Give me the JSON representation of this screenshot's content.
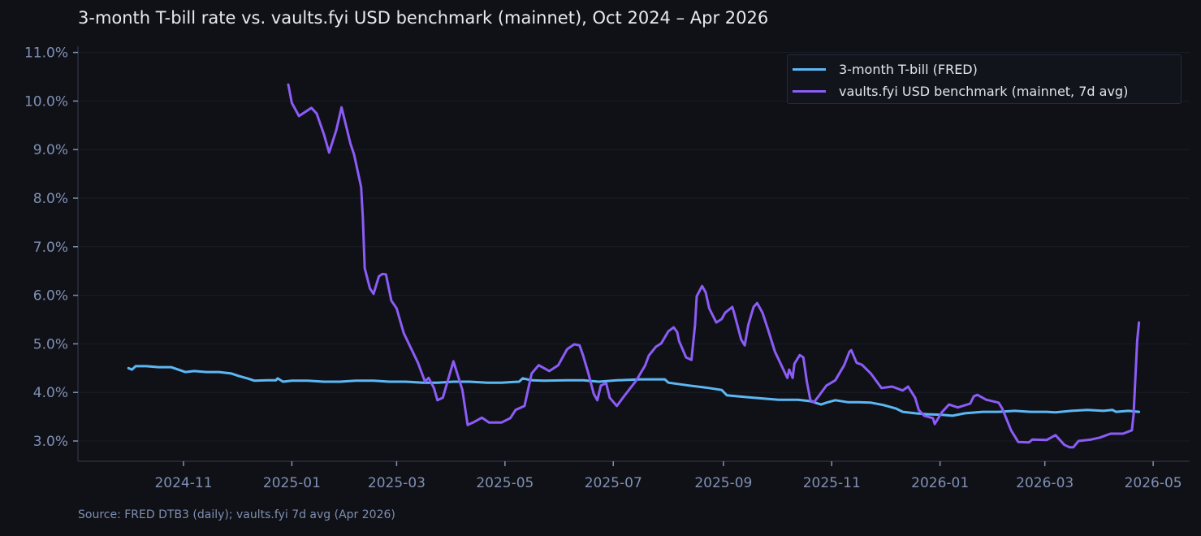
{
  "title": "3-month T-bill rate vs. vaults.fyi USD benchmark (mainnet), Oct 2024 – Apr 2026",
  "source_note": "Source: FRED DTB3 (daily); vaults.fyi 7d avg (Apr 2026)",
  "colors": {
    "background": "#101117",
    "tbill": "#5cb8f5",
    "vaults": "#8b5cf6",
    "grid": "#1a1d26",
    "axis": "#2a2f3e",
    "tick_text": "#8090b4"
  },
  "legend": [
    {
      "label": "3-month T-bill (FRED)",
      "color": "#5cb8f5"
    },
    {
      "label": "vaults.fyi USD benchmark (mainnet, 7d avg)",
      "color": "#8b5cf6"
    }
  ],
  "chart_data": {
    "type": "line",
    "title": "3-month T-bill rate vs. vaults.fyi USD benchmark (mainnet), Oct 2024 – Apr 2026",
    "xlabel": "",
    "ylabel": "",
    "x_ticks": [
      "2024-11",
      "2025-01",
      "2025-03",
      "2025-05",
      "2025-07",
      "2025-09",
      "2025-11",
      "2026-01",
      "2026-03",
      "2026-05"
    ],
    "y_ticks": [
      "3.0%",
      "4.0%",
      "5.0%",
      "6.0%",
      "7.0%",
      "8.0%",
      "9.0%",
      "10.0%",
      "11.0%"
    ],
    "ylim": [
      2.6,
      11.1
    ],
    "grid": true,
    "legend_position": "upper right",
    "series": [
      {
        "name": "3-month T-bill (FRED)",
        "points": [
          [
            "2024-10-01",
            4.5
          ],
          [
            "2024-10-03",
            4.47
          ],
          [
            "2024-10-05",
            4.54
          ],
          [
            "2024-10-11",
            4.54
          ],
          [
            "2024-10-18",
            4.52
          ],
          [
            "2024-10-25",
            4.52
          ],
          [
            "2024-10-29",
            4.47
          ],
          [
            "2024-11-02",
            4.42
          ],
          [
            "2024-11-07",
            4.44
          ],
          [
            "2024-11-14",
            4.42
          ],
          [
            "2024-11-21",
            4.42
          ],
          [
            "2024-11-28",
            4.39
          ],
          [
            "2024-12-02",
            4.34
          ],
          [
            "2024-12-07",
            4.29
          ],
          [
            "2024-12-11",
            4.24
          ],
          [
            "2024-12-18",
            4.25
          ],
          [
            "2024-12-23",
            4.25
          ],
          [
            "2024-12-24",
            4.29
          ],
          [
            "2024-12-27",
            4.22
          ],
          [
            "2025-01-01",
            4.24
          ],
          [
            "2025-01-10",
            4.24
          ],
          [
            "2025-01-19",
            4.22
          ],
          [
            "2025-01-28",
            4.22
          ],
          [
            "2025-02-06",
            4.24
          ],
          [
            "2025-02-16",
            4.24
          ],
          [
            "2025-02-25",
            4.22
          ],
          [
            "2025-03-06",
            4.22
          ],
          [
            "2025-03-16",
            4.2
          ],
          [
            "2025-03-24",
            4.2
          ],
          [
            "2025-04-02",
            4.22
          ],
          [
            "2025-04-11",
            4.22
          ],
          [
            "2025-04-21",
            4.2
          ],
          [
            "2025-04-29",
            4.2
          ],
          [
            "2025-05-09",
            4.22
          ],
          [
            "2025-05-11",
            4.29
          ],
          [
            "2025-05-16",
            4.25
          ],
          [
            "2025-05-23",
            4.24
          ],
          [
            "2025-06-05",
            4.25
          ],
          [
            "2025-06-14",
            4.25
          ],
          [
            "2025-06-23",
            4.22
          ],
          [
            "2025-07-03",
            4.25
          ],
          [
            "2025-07-16",
            4.27
          ],
          [
            "2025-07-30",
            4.27
          ],
          [
            "2025-08-01",
            4.2
          ],
          [
            "2025-08-13",
            4.14
          ],
          [
            "2025-08-22",
            4.1
          ],
          [
            "2025-08-31",
            4.05
          ],
          [
            "2025-09-03",
            3.94
          ],
          [
            "2025-09-09",
            3.92
          ],
          [
            "2025-09-18",
            3.89
          ],
          [
            "2025-10-02",
            3.85
          ],
          [
            "2025-10-13",
            3.85
          ],
          [
            "2025-10-20",
            3.82
          ],
          [
            "2025-10-26",
            3.75
          ],
          [
            "2025-10-29",
            3.79
          ],
          [
            "2025-11-03",
            3.84
          ],
          [
            "2025-11-10",
            3.8
          ],
          [
            "2025-11-16",
            3.8
          ],
          [
            "2025-11-23",
            3.79
          ],
          [
            "2025-11-30",
            3.74
          ],
          [
            "2025-12-07",
            3.67
          ],
          [
            "2025-12-11",
            3.6
          ],
          [
            "2025-12-18",
            3.57
          ],
          [
            "2025-12-25",
            3.55
          ],
          [
            "2026-01-02",
            3.54
          ],
          [
            "2026-01-08",
            3.52
          ],
          [
            "2026-01-15",
            3.57
          ],
          [
            "2026-01-25",
            3.6
          ],
          [
            "2026-02-03",
            3.6
          ],
          [
            "2026-02-12",
            3.62
          ],
          [
            "2026-02-21",
            3.6
          ],
          [
            "2026-03-02",
            3.6
          ],
          [
            "2026-03-07",
            3.59
          ],
          [
            "2026-03-16",
            3.62
          ],
          [
            "2026-03-25",
            3.64
          ],
          [
            "2026-04-03",
            3.62
          ],
          [
            "2026-04-08",
            3.64
          ],
          [
            "2026-04-10",
            3.6
          ],
          [
            "2026-04-17",
            3.62
          ],
          [
            "2026-04-23",
            3.6
          ]
        ]
      },
      {
        "name": "vaults.fyi USD benchmark (mainnet, 7d avg)",
        "points": [
          [
            "2024-12-30",
            10.34
          ],
          [
            "2025-01-01",
            9.96
          ],
          [
            "2025-01-05",
            9.69
          ],
          [
            "2025-01-12",
            9.86
          ],
          [
            "2025-01-15",
            9.74
          ],
          [
            "2025-01-19",
            9.32
          ],
          [
            "2025-01-22",
            8.94
          ],
          [
            "2025-01-26",
            9.4
          ],
          [
            "2025-01-29",
            9.87
          ],
          [
            "2025-02-03",
            9.12
          ],
          [
            "2025-02-05",
            8.9
          ],
          [
            "2025-02-09",
            8.23
          ],
          [
            "2025-02-10",
            7.57
          ],
          [
            "2025-02-11",
            6.56
          ],
          [
            "2025-02-14",
            6.14
          ],
          [
            "2025-02-16",
            6.03
          ],
          [
            "2025-02-19",
            6.39
          ],
          [
            "2025-02-21",
            6.44
          ],
          [
            "2025-02-23",
            6.43
          ],
          [
            "2025-02-26",
            5.89
          ],
          [
            "2025-03-01",
            5.73
          ],
          [
            "2025-03-05",
            5.22
          ],
          [
            "2025-03-13",
            4.61
          ],
          [
            "2025-03-17",
            4.22
          ],
          [
            "2025-03-19",
            4.3
          ],
          [
            "2025-03-22",
            4.09
          ],
          [
            "2025-03-24",
            3.84
          ],
          [
            "2025-03-27",
            3.89
          ],
          [
            "2025-04-02",
            4.64
          ],
          [
            "2025-04-07",
            4.05
          ],
          [
            "2025-04-10",
            3.33
          ],
          [
            "2025-04-13",
            3.38
          ],
          [
            "2025-04-18",
            3.48
          ],
          [
            "2025-04-22",
            3.38
          ],
          [
            "2025-04-29",
            3.38
          ],
          [
            "2025-05-04",
            3.47
          ],
          [
            "2025-05-07",
            3.64
          ],
          [
            "2025-05-12",
            3.72
          ],
          [
            "2025-05-16",
            4.39
          ],
          [
            "2025-05-20",
            4.56
          ],
          [
            "2025-05-26",
            4.44
          ],
          [
            "2025-05-31",
            4.56
          ],
          [
            "2025-06-05",
            4.89
          ],
          [
            "2025-06-09",
            4.99
          ],
          [
            "2025-06-12",
            4.97
          ],
          [
            "2025-06-14",
            4.76
          ],
          [
            "2025-06-17",
            4.39
          ],
          [
            "2025-06-20",
            3.97
          ],
          [
            "2025-06-22",
            3.84
          ],
          [
            "2025-06-24",
            4.14
          ],
          [
            "2025-06-27",
            4.19
          ],
          [
            "2025-06-29",
            3.89
          ],
          [
            "2025-07-03",
            3.72
          ],
          [
            "2025-07-07",
            3.92
          ],
          [
            "2025-07-14",
            4.25
          ],
          [
            "2025-07-19",
            4.56
          ],
          [
            "2025-07-21",
            4.76
          ],
          [
            "2025-07-25",
            4.94
          ],
          [
            "2025-07-28",
            5.01
          ],
          [
            "2025-08-01",
            5.26
          ],
          [
            "2025-08-04",
            5.34
          ],
          [
            "2025-08-06",
            5.24
          ],
          [
            "2025-08-07",
            5.06
          ],
          [
            "2025-08-11",
            4.72
          ],
          [
            "2025-08-14",
            4.67
          ],
          [
            "2025-08-16",
            5.39
          ],
          [
            "2025-08-17",
            5.98
          ],
          [
            "2025-08-20",
            6.19
          ],
          [
            "2025-08-22",
            6.06
          ],
          [
            "2025-08-24",
            5.73
          ],
          [
            "2025-08-28",
            5.44
          ],
          [
            "2025-08-31",
            5.51
          ],
          [
            "2025-09-02",
            5.64
          ],
          [
            "2025-09-06",
            5.76
          ],
          [
            "2025-09-07",
            5.64
          ],
          [
            "2025-09-11",
            5.09
          ],
          [
            "2025-09-13",
            4.97
          ],
          [
            "2025-09-15",
            5.39
          ],
          [
            "2025-09-18",
            5.76
          ],
          [
            "2025-09-20",
            5.84
          ],
          [
            "2025-09-23",
            5.64
          ],
          [
            "2025-09-26",
            5.31
          ],
          [
            "2025-09-30",
            4.84
          ],
          [
            "2025-10-03",
            4.61
          ],
          [
            "2025-10-07",
            4.3
          ],
          [
            "2025-10-08",
            4.47
          ],
          [
            "2025-10-10",
            4.3
          ],
          [
            "2025-10-11",
            4.59
          ],
          [
            "2025-10-14",
            4.77
          ],
          [
            "2025-10-16",
            4.72
          ],
          [
            "2025-10-18",
            4.22
          ],
          [
            "2025-10-20",
            3.84
          ],
          [
            "2025-10-22",
            3.8
          ],
          [
            "2025-10-25",
            3.94
          ],
          [
            "2025-10-29",
            4.14
          ],
          [
            "2025-11-03",
            4.25
          ],
          [
            "2025-11-08",
            4.56
          ],
          [
            "2025-11-11",
            4.84
          ],
          [
            "2025-11-12",
            4.87
          ],
          [
            "2025-11-15",
            4.61
          ],
          [
            "2025-11-18",
            4.57
          ],
          [
            "2025-11-23",
            4.39
          ],
          [
            "2025-11-29",
            4.09
          ],
          [
            "2025-12-05",
            4.12
          ],
          [
            "2025-12-11",
            4.04
          ],
          [
            "2025-12-14",
            4.12
          ],
          [
            "2025-12-18",
            3.89
          ],
          [
            "2025-12-20",
            3.64
          ],
          [
            "2025-12-23",
            3.52
          ],
          [
            "2025-12-28",
            3.47
          ],
          [
            "2025-12-29",
            3.35
          ],
          [
            "2026-01-02",
            3.59
          ],
          [
            "2026-01-06",
            3.75
          ],
          [
            "2026-01-11",
            3.69
          ],
          [
            "2026-01-18",
            3.77
          ],
          [
            "2026-01-20",
            3.92
          ],
          [
            "2026-01-22",
            3.95
          ],
          [
            "2026-01-27",
            3.85
          ],
          [
            "2026-02-03",
            3.79
          ],
          [
            "2026-02-05",
            3.67
          ],
          [
            "2026-02-10",
            3.22
          ],
          [
            "2026-02-14",
            2.98
          ],
          [
            "2026-02-20",
            2.97
          ],
          [
            "2026-02-22",
            3.03
          ],
          [
            "2026-03-02",
            3.02
          ],
          [
            "2026-03-07",
            3.12
          ],
          [
            "2026-03-12",
            2.92
          ],
          [
            "2026-03-15",
            2.87
          ],
          [
            "2026-03-17",
            2.87
          ],
          [
            "2026-03-20",
            3.0
          ],
          [
            "2026-03-27",
            3.03
          ],
          [
            "2026-04-01",
            3.07
          ],
          [
            "2026-04-07",
            3.15
          ],
          [
            "2026-04-14",
            3.15
          ],
          [
            "2026-04-19",
            3.22
          ],
          [
            "2026-04-20",
            3.55
          ],
          [
            "2026-04-22",
            5.06
          ],
          [
            "2026-04-23",
            5.44
          ]
        ]
      }
    ]
  }
}
